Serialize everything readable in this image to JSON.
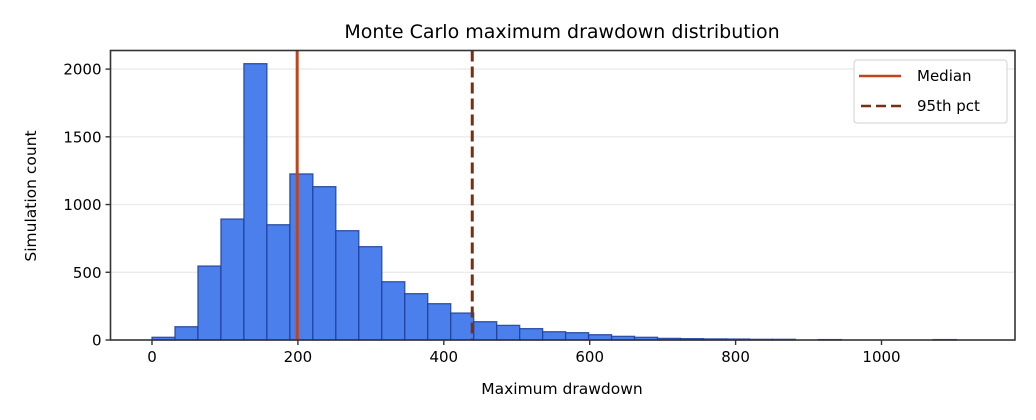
{
  "chart_data": {
    "type": "bar",
    "title": "Monte Carlo maximum drawdown distribution",
    "xlabel": "Maximum drawdown",
    "ylabel": "Simulation count",
    "xlim": [
      -57,
      1185
    ],
    "ylim": [
      0,
      2140
    ],
    "xticks": [
      0,
      200,
      400,
      600,
      800,
      1000
    ],
    "yticks": [
      0,
      500,
      1000,
      1500,
      2000
    ],
    "grid": {
      "y": true,
      "x": false
    },
    "bin_start": 0,
    "bin_width": 31.5,
    "values": [
      20,
      98,
      546,
      893,
      2040,
      851,
      1226,
      1132,
      807,
      689,
      430,
      342,
      268,
      199,
      135,
      108,
      84,
      61,
      54,
      39,
      27,
      20,
      12,
      10,
      8,
      7,
      5,
      5,
      0,
      3,
      0,
      0,
      0,
      0,
      3,
      0
    ],
    "bar_color": "#4a7fec",
    "bar_edge_color": "#1f3f99",
    "lines": [
      {
        "name": "Median",
        "x": 199,
        "style": "solid",
        "color": "#c4441a"
      },
      {
        "name": "95th pct",
        "x": 439,
        "style": "dashed",
        "color": "#7a2e12"
      }
    ],
    "legend": {
      "position": "upper right",
      "entries": [
        "Median",
        "95th pct"
      ]
    }
  },
  "labels": {
    "title": "Monte Carlo maximum drawdown distribution",
    "xlabel": "Maximum drawdown",
    "ylabel": "Simulation count",
    "legend_median": "Median",
    "legend_p95": "95th pct"
  }
}
